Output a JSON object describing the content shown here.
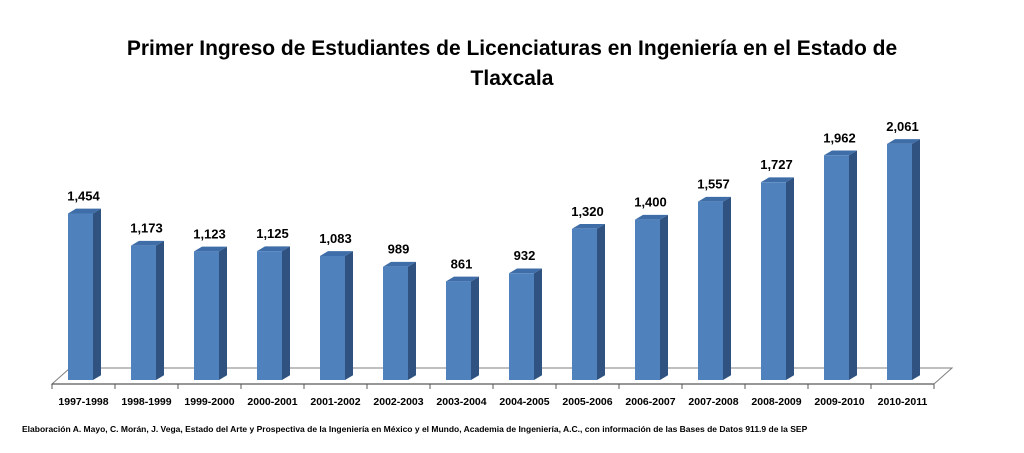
{
  "chart_data": {
    "type": "bar",
    "title": "Primer Ingreso de Estudiantes de Licenciaturas en Ingeniería en el Estado de Tlaxcala",
    "categories": [
      "1997-1998",
      "1998-1999",
      "1999-2000",
      "2000-2001",
      "2001-2002",
      "2002-2003",
      "2003-2004",
      "2004-2005",
      "2005-2006",
      "2006-2007",
      "2007-2008",
      "2008-2009",
      "2009-2010",
      "2010-2011"
    ],
    "values": [
      1454,
      1173,
      1123,
      1125,
      1083,
      989,
      861,
      932,
      1320,
      1400,
      1557,
      1727,
      1962,
      2061
    ],
    "value_labels": [
      "1,454",
      "1,173",
      "1,123",
      "1,125",
      "1,083",
      "989",
      "861",
      "932",
      "1,320",
      "1,400",
      "1,557",
      "1,727",
      "1,962",
      "2,061"
    ],
    "xlabel": "",
    "ylabel": "",
    "ylim": [
      0,
      2200
    ],
    "grid": false,
    "legend": "none",
    "bar_color": "#4F81BD",
    "bar_side_color": "#2F5280",
    "bar_top_color": "#3E6DA8"
  },
  "source_note": "Elaboración A. Mayo, C. Morán, J. Vega, Estado del Arte y Prospectiva de la Ingeniería en México y el Mundo, Academia de Ingeniería, A.C., con información de las Bases de Datos  911.9  de la SEP"
}
